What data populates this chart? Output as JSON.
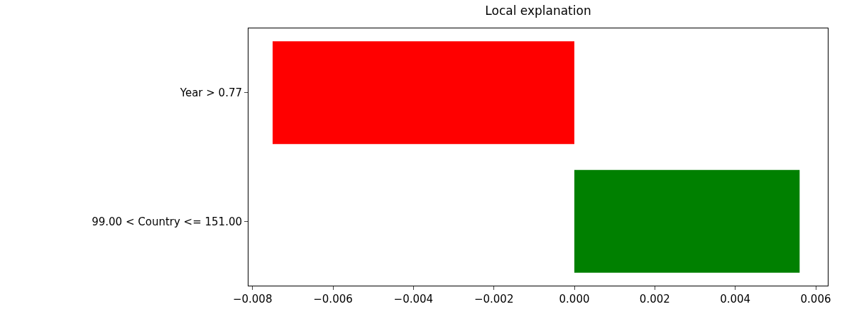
{
  "chart_data": {
    "type": "bar",
    "orientation": "horizontal",
    "title": "Local explanation",
    "categories": [
      "Year > 0.77",
      "99.00 < Country <= 151.00"
    ],
    "values": [
      -0.0075,
      0.0056
    ],
    "colors": [
      "#ff0000",
      "#008000"
    ],
    "xlim": [
      -0.0081,
      0.0063
    ],
    "xticks": [
      {
        "value": -0.008,
        "label": "−0.008"
      },
      {
        "value": -0.006,
        "label": "−0.006"
      },
      {
        "value": -0.004,
        "label": "−0.004"
      },
      {
        "value": -0.002,
        "label": "−0.002"
      },
      {
        "value": 0,
        "label": "0.000"
      },
      {
        "value": 0.002,
        "label": "0.002"
      },
      {
        "value": 0.004,
        "label": "0.004"
      },
      {
        "value": 0.006,
        "label": "0.006"
      }
    ],
    "legend": false
  }
}
